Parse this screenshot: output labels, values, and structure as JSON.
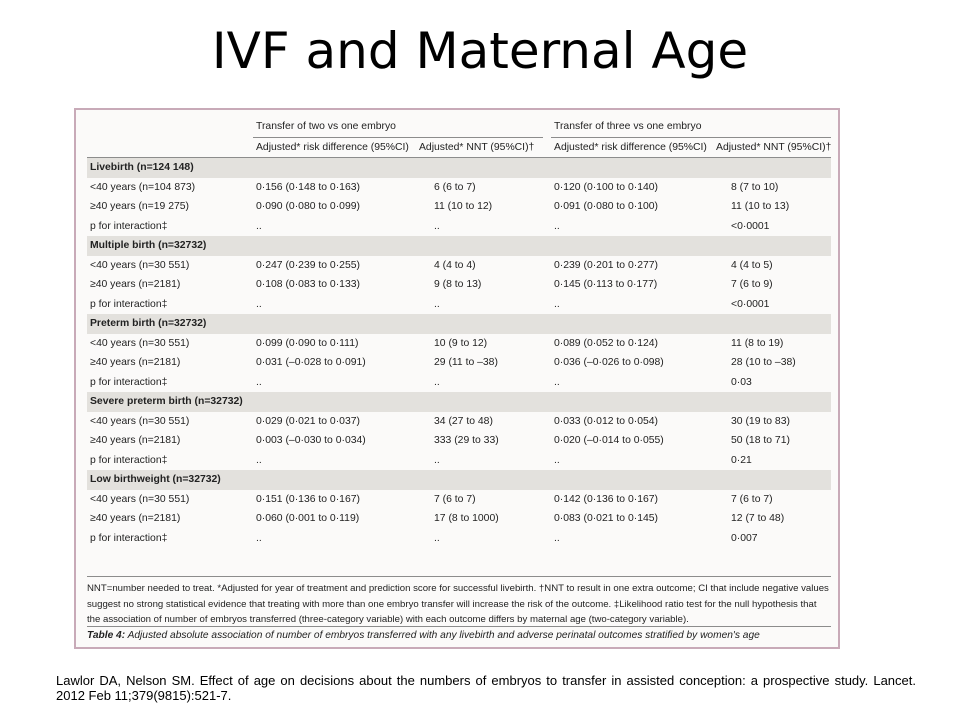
{
  "slide": {
    "title": "IVF and Maternal Age",
    "citation": "Lawlor DA, Nelson SM. Effect of age on decisions about the numbers of embryos to transfer in assisted conception: a prospective study. Lancet. 2012 Feb 11;379(9815):521-7."
  },
  "table": {
    "group_headers": [
      "Transfer of two vs one embryo",
      "Transfer of three vs one embryo"
    ],
    "sub_headers": [
      "Adjusted* risk difference (95%CI)",
      "Adjusted* NNT (95%CI)†",
      "Adjusted* risk difference (95%CI)",
      "Adjusted* NNT (95%CI)†"
    ],
    "sections": [
      {
        "title": "Livebirth (n=124 148)",
        "rows": [
          [
            "<40 years (n=104 873)",
            "0·156 (0·148 to 0·163)",
            "6 (6 to 7)",
            "0·120 (0·100 to 0·140)",
            "8 (7 to 10)"
          ],
          [
            "≥40 years (n=19 275)",
            "0·090 (0·080 to 0·099)",
            "11 (10 to 12)",
            "0·091 (0·080 to 0·100)",
            "11 (10 to 13)"
          ],
          [
            "p for interaction‡",
            "..",
            "..",
            "..",
            "<0·0001"
          ]
        ]
      },
      {
        "title": "Multiple birth (n=32732)",
        "rows": [
          [
            "<40 years (n=30 551)",
            "0·247 (0·239 to 0·255)",
            "4 (4 to 4)",
            "0·239 (0·201 to 0·277)",
            "4 (4 to 5)"
          ],
          [
            "≥40 years (n=2181)",
            "0·108 (0·083 to 0·133)",
            "9 (8 to 13)",
            "0·145 (0·113 to 0·177)",
            "7 (6 to 9)"
          ],
          [
            "p for interaction‡",
            "..",
            "..",
            "..",
            "<0·0001"
          ]
        ]
      },
      {
        "title": "Preterm birth (n=32732)",
        "rows": [
          [
            "<40 years (n=30 551)",
            "0·099 (0·090 to 0·111)",
            "10 (9 to 12)",
            "0·089 (0·052 to 0·124)",
            "11 (8 to 19)"
          ],
          [
            "≥40 years (n=2181)",
            "0·031 (–0·028 to 0·091)",
            "29 (11 to –38)",
            "0·036 (–0·026 to 0·098)",
            "28 (10 to –38)"
          ],
          [
            "p for interaction‡",
            "..",
            "..",
            "..",
            "0·03"
          ]
        ]
      },
      {
        "title": "Severe preterm birth (n=32732)",
        "rows": [
          [
            "<40 years (n=30 551)",
            "0·029 (0·021 to 0·037)",
            "34 (27 to 48)",
            "0·033 (0·012 to 0·054)",
            "30 (19 to 83)"
          ],
          [
            "≥40 years (n=2181)",
            "0·003 (–0·030 to 0·034)",
            "333 (29 to 33)",
            "0·020 (–0·014 to 0·055)",
            "50 (18 to 71)"
          ],
          [
            "p for interaction‡",
            "..",
            "..",
            "..",
            "0·21"
          ]
        ]
      },
      {
        "title": "Low birthweight (n=32732)",
        "rows": [
          [
            "<40 years (n=30 551)",
            "0·151 (0·136 to 0·167)",
            "7 (6 to 7)",
            "0·142 (0·136 to 0·167)",
            "7 (6 to 7)"
          ],
          [
            "≥40 years (n=2181)",
            "0·060 (0·001 to 0·119)",
            "17 (8 to 1000)",
            "0·083 (0·021 to 0·145)",
            "12 (7 to 48)"
          ],
          [
            "p for interaction‡",
            "..",
            "..",
            "..",
            "0·007"
          ]
        ]
      }
    ],
    "footnote": "NNT=number needed to treat. *Adjusted for year of treatment and prediction score for successful livebirth. †NNT to result in one extra outcome; CI that include negative values suggest no strong statistical evidence that treating with more than one embryo transfer will increase the risk of the outcome. ‡Likelihood ratio test for the null hypothesis that the association of number of embryos transferred (three-category variable) with each outcome differs by maternal age (two-category variable).",
    "caption_label": "Table 4:",
    "caption_text": " Adjusted absolute association of number of embryos transferred with any livebirth and adverse perinatal outcomes stratified by women's age"
  }
}
